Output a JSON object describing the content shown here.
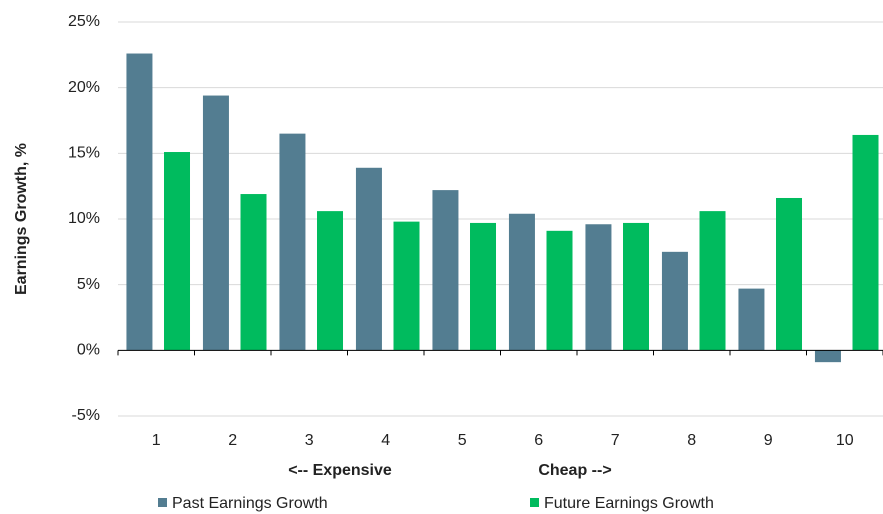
{
  "chart_data": {
    "type": "bar",
    "y_label": "Earnings Growth, %",
    "categories": [
      "1",
      "2",
      "3",
      "4",
      "5",
      "6",
      "7",
      "8",
      "9",
      "10"
    ],
    "series": [
      {
        "name": "Past Earnings Growth",
        "color": "#537d91",
        "values": [
          22.6,
          19.4,
          16.5,
          13.9,
          12.2,
          10.4,
          9.6,
          7.5,
          4.7,
          -0.9
        ]
      },
      {
        "name": "Future Earnings Growth",
        "color": "#00bb5e",
        "values": [
          15.1,
          11.9,
          10.6,
          9.8,
          9.7,
          9.1,
          9.7,
          10.6,
          11.6,
          16.4
        ]
      }
    ],
    "ylim": [
      -5,
      25
    ],
    "yticks": [
      {
        "value": -5,
        "label": "-5%"
      },
      {
        "value": 0,
        "label": "0%"
      },
      {
        "value": 5,
        "label": "5%"
      },
      {
        "value": 10,
        "label": "10%"
      },
      {
        "value": 15,
        "label": "15%"
      },
      {
        "value": 20,
        "label": "20%"
      },
      {
        "value": 25,
        "label": "25%"
      }
    ],
    "grid": true,
    "annotations": [
      "<-- Expensive",
      "Cheap -->"
    ]
  }
}
